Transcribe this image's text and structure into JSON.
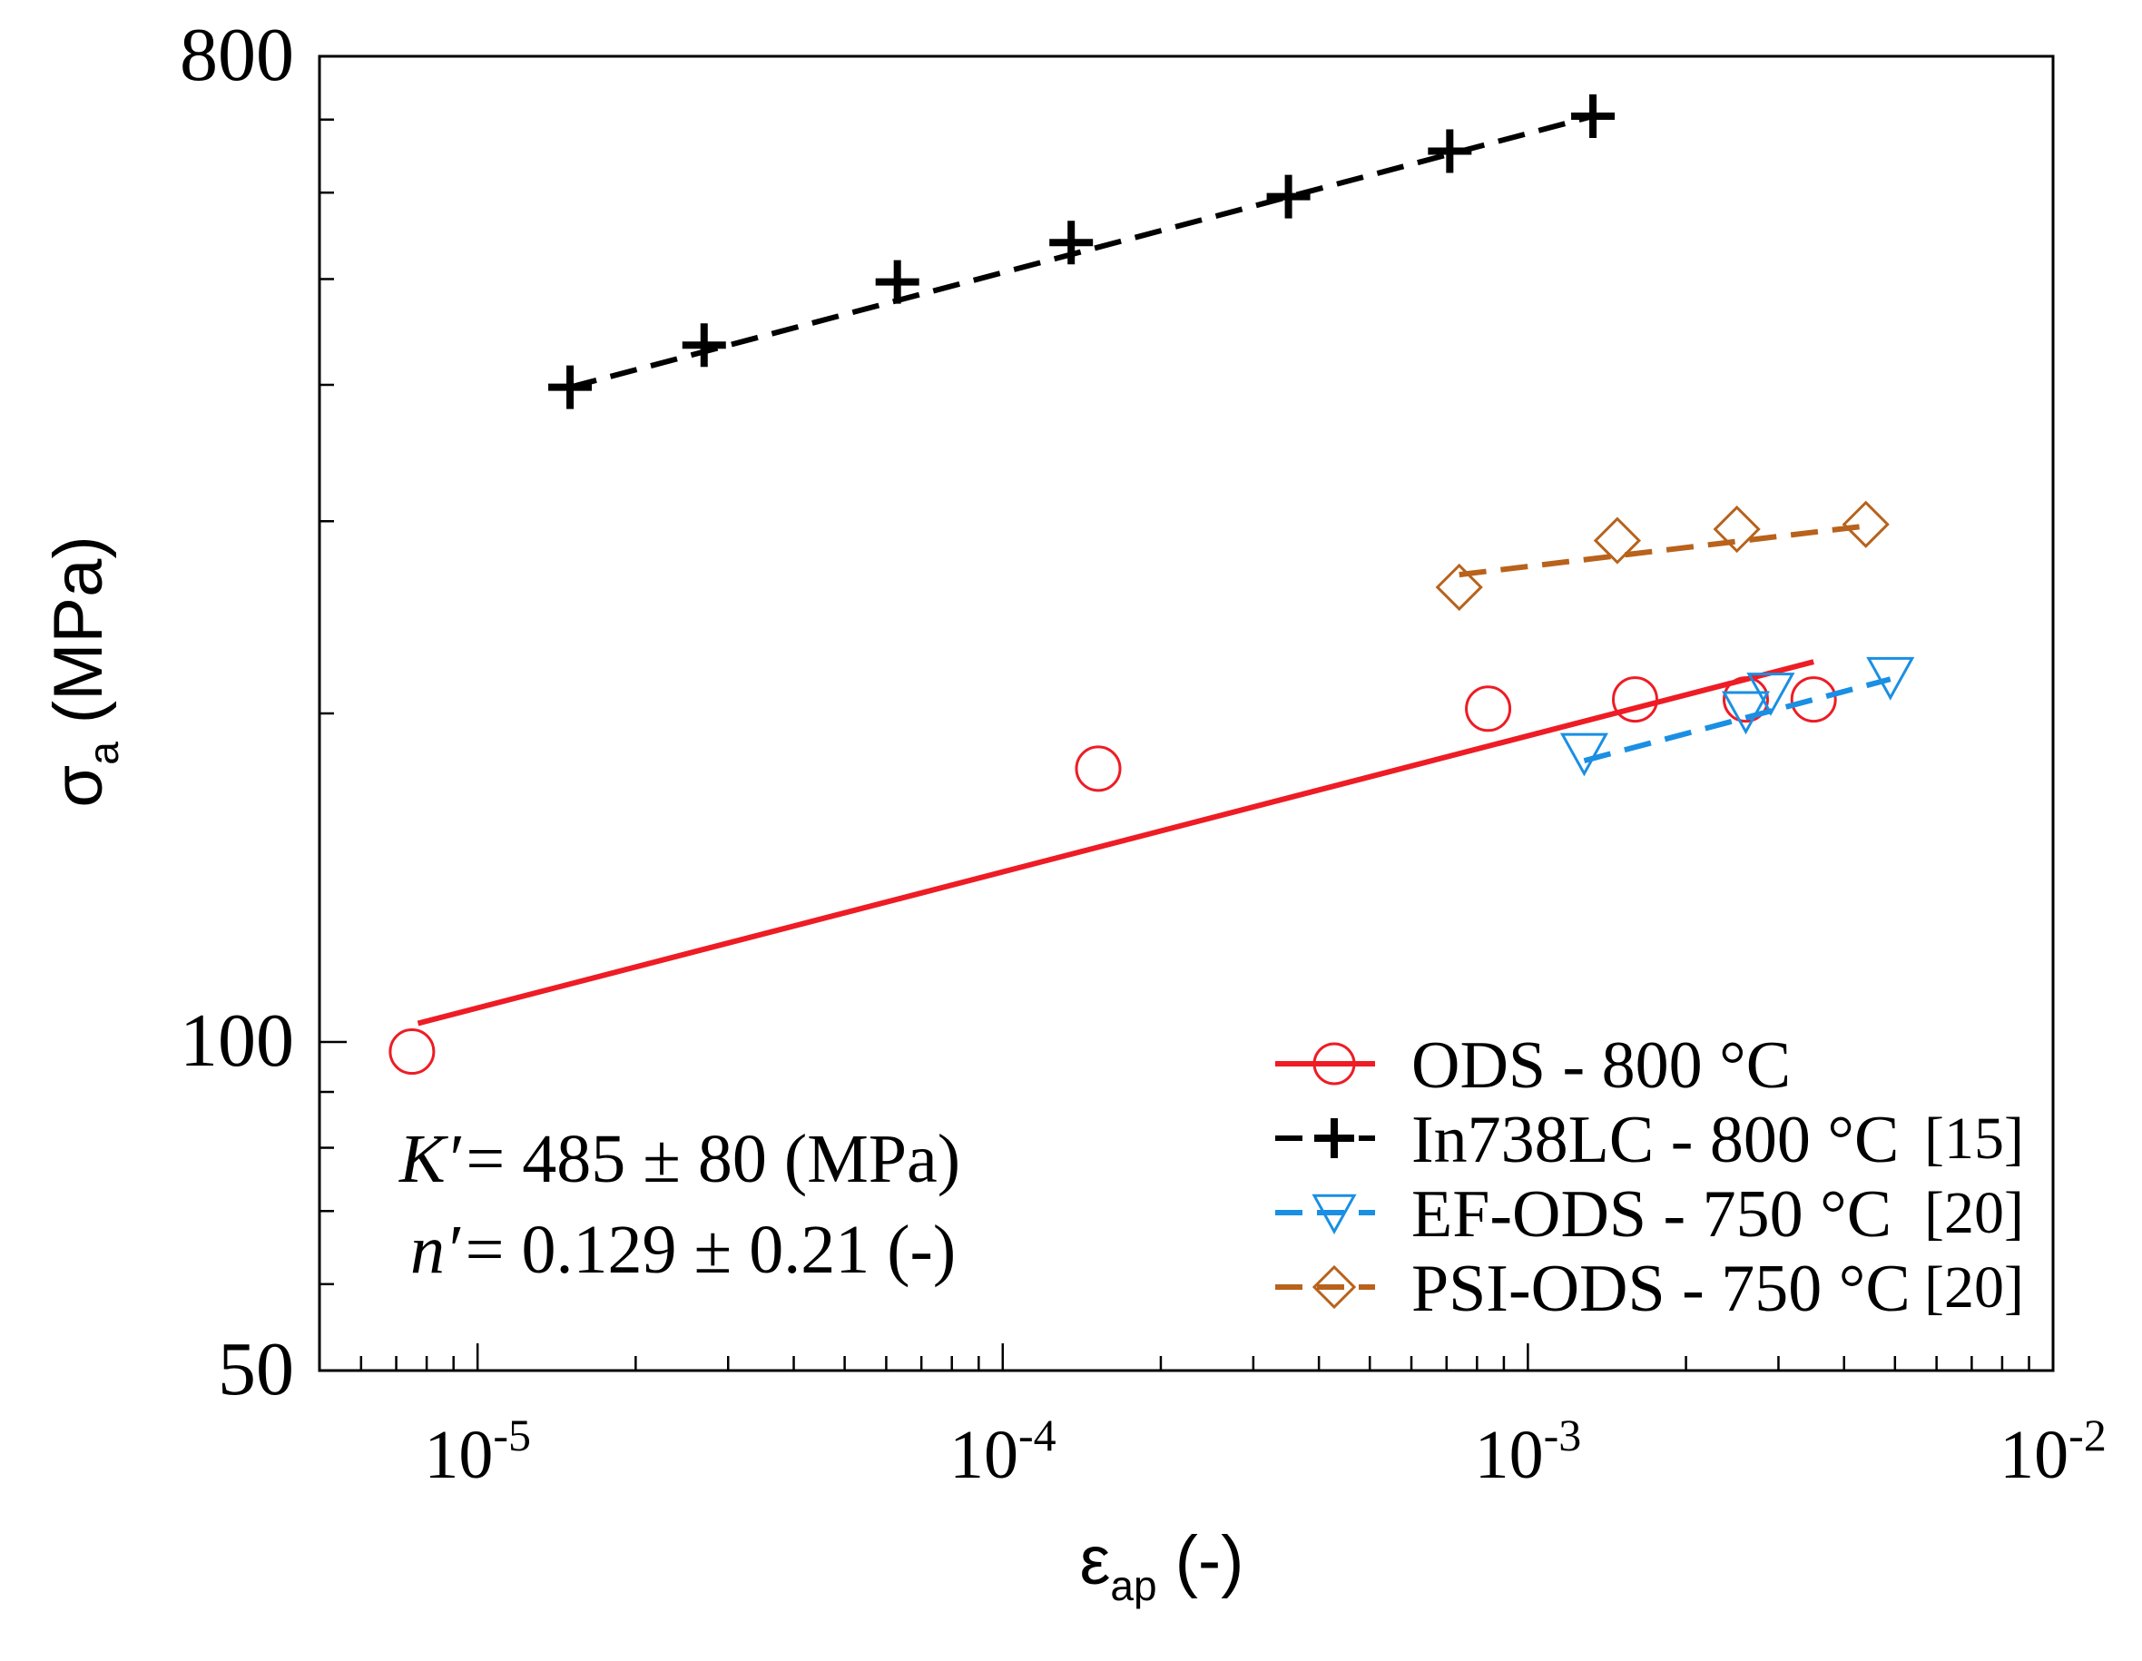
{
  "chart_data": {
    "type": "scatter",
    "title": "",
    "x_axis": {
      "scale": "log",
      "range": [
        5e-06,
        0.01
      ],
      "label_main": "ε",
      "label_sub": "ap",
      "label_unit": "(-)",
      "major_ticks": [
        {
          "value": 1e-05,
          "base": "10",
          "exp": "-5"
        },
        {
          "value": 0.0001,
          "base": "10",
          "exp": "-4"
        },
        {
          "value": 0.001,
          "base": "10",
          "exp": "-3"
        },
        {
          "value": 0.01,
          "base": "10",
          "exp": "-2"
        }
      ]
    },
    "y_axis": {
      "scale": "log",
      "range": [
        50,
        800
      ],
      "label_main": "σ",
      "label_sub": "a",
      "label_unit": "(MPa)",
      "tick_labels": [
        {
          "value": 800,
          "text": "800"
        },
        {
          "value": 100,
          "text": "100"
        },
        {
          "value": 50,
          "text": "50"
        }
      ]
    },
    "series": [
      {
        "name": "ODS - 800 °C",
        "legend_label": "ODS - 800 °C",
        "ref": "",
        "color": "#ee1c25",
        "marker": "circle",
        "line_style": "solid",
        "points": [
          [
            7.5e-06,
            98
          ],
          [
            0.000152,
            178
          ],
          [
            0.00084,
            202
          ],
          [
            0.0016,
            206
          ],
          [
            0.0026,
            206
          ],
          [
            0.0035,
            206
          ]
        ],
        "fit": [
          [
            7.7e-06,
            104
          ],
          [
            0.0035,
            223
          ]
        ]
      },
      {
        "name": "In738LC - 800 °C",
        "legend_label": "In738LC - 800 °C",
        "ref": "[15]",
        "color": "#000000",
        "marker": "plus",
        "line_style": "dashed",
        "points": [
          [
            1.5e-05,
            398
          ],
          [
            2.7e-05,
            435
          ],
          [
            6.3e-05,
            497
          ],
          [
            0.000135,
            540
          ],
          [
            0.00035,
            595
          ],
          [
            0.00071,
            655
          ],
          [
            0.00133,
            705
          ]
        ],
        "fit": [
          [
            1.5e-05,
            398
          ],
          [
            0.00133,
            705
          ]
        ]
      },
      {
        "name": "EF-ODS - 750 °C",
        "legend_label": "EF-ODS - 750 °C",
        "ref": "[20]",
        "color": "#1a8fe3",
        "marker": "triangle-down",
        "line_style": "dashed",
        "points": [
          [
            0.00128,
            184
          ],
          [
            0.0026,
            201
          ],
          [
            0.0029,
            209
          ],
          [
            0.0049,
            216
          ]
        ],
        "fit": [
          [
            0.00128,
            181
          ],
          [
            0.0049,
            215
          ]
        ]
      },
      {
        "name": "PSI-ODS - 750 °C",
        "legend_label": "PSI-ODS - 750 °C",
        "ref": "[20]",
        "color": "#b8621b",
        "marker": "diamond",
        "line_style": "dashed",
        "points": [
          [
            0.00074,
            261
          ],
          [
            0.00148,
            288
          ],
          [
            0.0025,
            295
          ],
          [
            0.0044,
            298
          ]
        ],
        "fit": [
          [
            0.00074,
            268
          ],
          [
            0.0044,
            297
          ]
        ]
      }
    ],
    "legend_position": "bottom-right",
    "annotations": [
      {
        "symbol": "K′",
        "text": "= 485 ± 80 (MPa)"
      },
      {
        "symbol": "n′",
        "text": "= 0.129 ± 0.21 (-)"
      }
    ]
  }
}
